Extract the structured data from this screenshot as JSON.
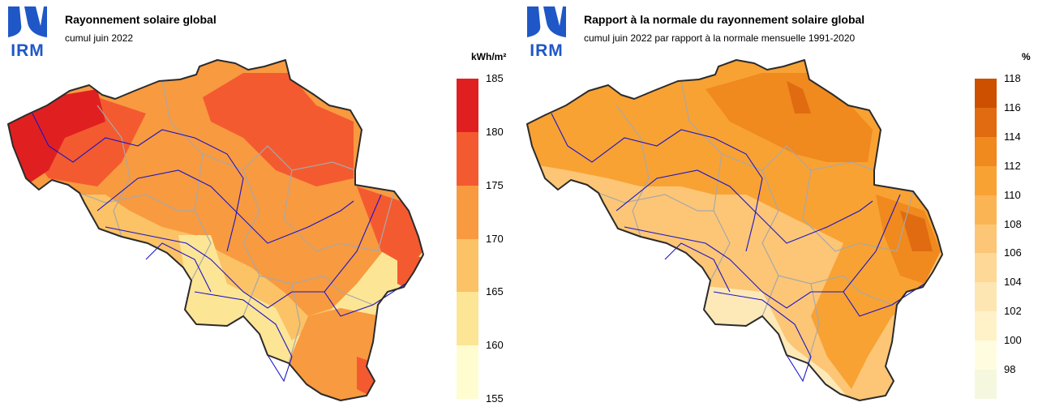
{
  "logo": {
    "text": "IRM",
    "color": "#1f57c7"
  },
  "maps": [
    {
      "title": "Rayonnement solaire global",
      "subtitle": "cumul juin 2022",
      "unit": "kWh/m²",
      "legend": {
        "ticks": [
          "185",
          "180",
          "175",
          "170",
          "165",
          "160",
          "155"
        ],
        "colors": [
          "#e02020",
          "#f45a30",
          "#f89a40",
          "#fbc266",
          "#fde596",
          "#fffcd0"
        ]
      },
      "zones": [
        "#fde596",
        "#fbc266",
        "#f89a40",
        "#f45a30",
        "#e02020"
      ]
    },
    {
      "title": "Rapport à la normale du rayonnement solaire global",
      "subtitle": "cumul juin 2022 par rapport à la normale mensuelle 1991-2020",
      "unit": "%",
      "legend": {
        "ticks": [
          "118",
          "116",
          "114",
          "112",
          "110",
          "108",
          "106",
          "104",
          "102",
          "100",
          "98"
        ],
        "colors": [
          "#cc5000",
          "#e06b10",
          "#f0891e",
          "#f8a234",
          "#fbb454",
          "#fcc676",
          "#fdd896",
          "#fee6b2",
          "#fff2c8",
          "#fffce0",
          "#f5f8df"
        ]
      },
      "zones": [
        "#fde9b8",
        "#fcc676",
        "#f8a234",
        "#f0891e",
        "#e06b10"
      ]
    }
  ]
}
